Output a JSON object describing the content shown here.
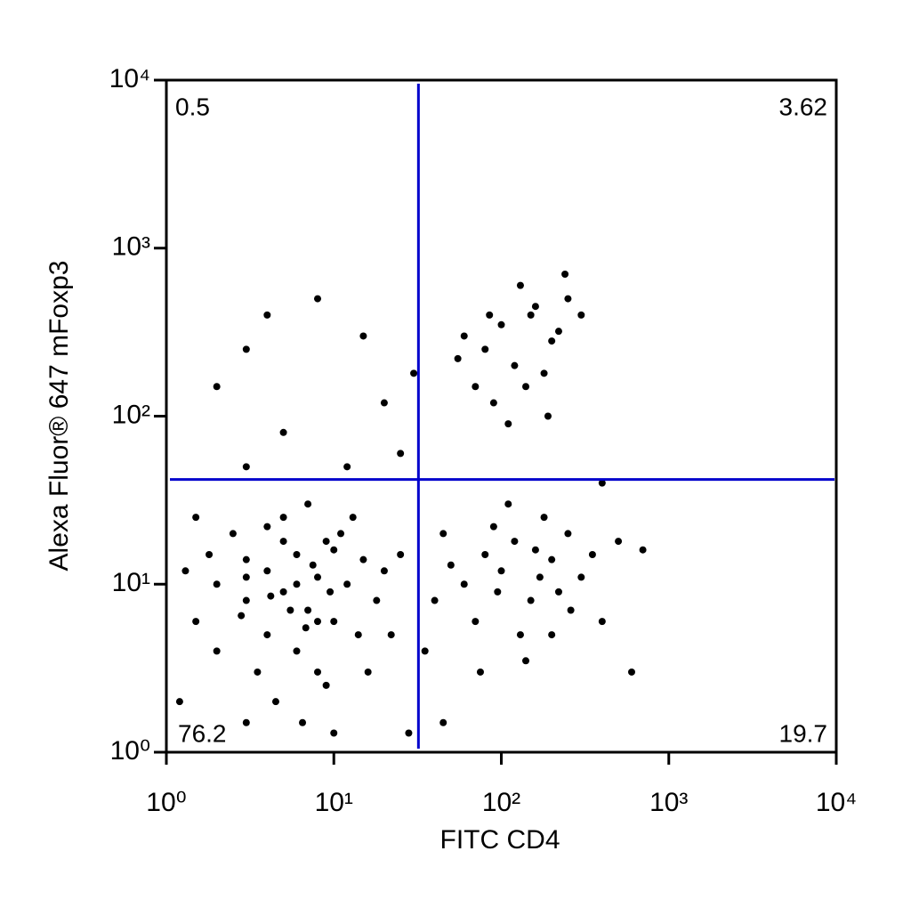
{
  "chart_data": {
    "type": "scatter",
    "x_label": "FITC CD4",
    "y_label": "Alexa Fluor® 647  mFoxp3",
    "xscale": "log",
    "yscale": "log",
    "xlim": [
      1,
      10000
    ],
    "ylim": [
      1,
      10000
    ],
    "xticks": [
      {
        "value": 1,
        "label": "10⁰"
      },
      {
        "value": 10,
        "label": "10¹"
      },
      {
        "value": 100,
        "label": "10²"
      },
      {
        "value": 1000,
        "label": "10³"
      },
      {
        "value": 10000,
        "label": "10⁴"
      }
    ],
    "yticks": [
      {
        "value": 1,
        "label": "10⁰"
      },
      {
        "value": 10,
        "label": "10¹"
      },
      {
        "value": 100,
        "label": "10²"
      },
      {
        "value": 1000,
        "label": "10³"
      },
      {
        "value": 10000,
        "label": "10⁴"
      }
    ],
    "gate": {
      "x": 32,
      "y": 42,
      "color": "#0000cc"
    },
    "quadrant_labels": {
      "upper_left": "0.5",
      "upper_right": "3.62",
      "lower_left": "76.2",
      "lower_right": "19.7"
    },
    "color": "#000000",
    "x": [
      2,
      3,
      4,
      5,
      6,
      7,
      8,
      9,
      10,
      4,
      3,
      2.5,
      6,
      5,
      8,
      12,
      15,
      1.5,
      1.3,
      3.5,
      4.5,
      6.5,
      9,
      11,
      14,
      18,
      20,
      7,
      4,
      2,
      1.8,
      5.5,
      7.5,
      9.5,
      3,
      6,
      8,
      10,
      5,
      2.8,
      4.2,
      6.8,
      13,
      16,
      25,
      22,
      1.2,
      1.5,
      3,
      10,
      60,
      80,
      100,
      120,
      150,
      200,
      250,
      70,
      90,
      130,
      180,
      220,
      50,
      300,
      110,
      160,
      75,
      140,
      200,
      260,
      40,
      45,
      350,
      400,
      95,
      170,
      60,
      80,
      100,
      120,
      150,
      200,
      250,
      70,
      90,
      130,
      180,
      220,
      110,
      160,
      240,
      55,
      300,
      85,
      140,
      190,
      2,
      3,
      5,
      8,
      15,
      20,
      25,
      12,
      4,
      500,
      700,
      600,
      35,
      30,
      400,
      3,
      28,
      45
    ],
    "y": [
      10,
      8,
      12,
      9,
      15,
      7,
      11,
      18,
      6,
      5,
      14,
      20,
      4,
      25,
      3,
      10,
      14,
      6,
      12,
      3,
      2,
      1.5,
      2.5,
      20,
      5,
      8,
      12,
      30,
      22,
      4,
      15,
      7,
      13,
      9,
      11,
      10,
      6,
      16,
      18,
      6.5,
      8.5,
      5.5,
      25,
      3,
      15,
      5,
      2,
      25,
      1.5,
      1.3,
      10,
      15,
      12,
      18,
      8,
      14,
      20,
      6,
      22,
      5,
      25,
      9,
      13,
      11,
      30,
      16,
      3,
      3.5,
      5,
      7,
      8,
      20,
      15,
      6,
      9,
      11,
      300,
      250,
      350,
      200,
      400,
      280,
      500,
      150,
      120,
      600,
      180,
      320,
      90,
      450,
      700,
      220,
      400,
      400,
      150,
      100,
      150,
      250,
      80,
      500,
      300,
      120,
      60,
      50,
      400,
      18,
      16,
      3,
      4,
      180,
      40,
      50,
      1.3,
      1.5
    ]
  }
}
